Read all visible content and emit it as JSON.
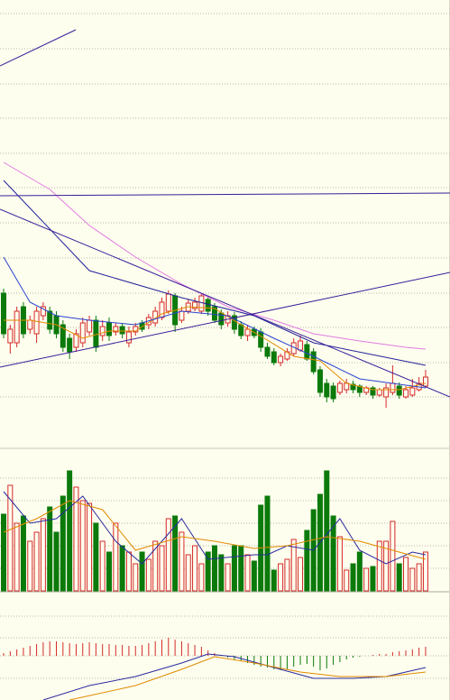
{
  "chart_data": [
    {
      "type": "candlestick",
      "xlim": [
        -0.55,
        67.7
      ],
      "ylim": [
        1,
        50
      ],
      "yticks": [
        48.5,
        44.6,
        40.7,
        36.9,
        33,
        29.2,
        25.3,
        21.4,
        17.5,
        13.7,
        9.8,
        6
      ],
      "grid": true,
      "up_color": "#d42a2a",
      "down_color": "#0b7a0b",
      "open": [
        17.5,
        12.0,
        12.0,
        16.0,
        13.5,
        13.0,
        15.0,
        15.5,
        15.0,
        14.0,
        12.5,
        11.5,
        12.0,
        13.2,
        14.5,
        12.8,
        14.2,
        13.2,
        13.8,
        12.0,
        13.2,
        14.2,
        14.0,
        14.2,
        14.8,
        15.5,
        17.2,
        14.5,
        15.5,
        15.8,
        15.5,
        16.8,
        16.0,
        15.3,
        14.2,
        15.0,
        14.0,
        12.8,
        13.5,
        13.2,
        11.5,
        11.0,
        9.8,
        10.2,
        10.8,
        11.2,
        11.8,
        11.0,
        9.0,
        7.5,
        7.2,
        6.5,
        6.8,
        7.4,
        7.2,
        6.5,
        7.0,
        6.2,
        6.0,
        6.5,
        7.2,
        6.0,
        6.2,
        6.8,
        7.2
      ],
      "high": [
        18.0,
        14.0,
        16.0,
        16.5,
        15.0,
        16.0,
        16.5,
        16.0,
        15.5,
        14.5,
        13.0,
        13.5,
        14.8,
        15.0,
        15.0,
        14.5,
        14.8,
        14.2,
        14.2,
        13.8,
        14.2,
        14.5,
        15.2,
        16.0,
        17.0,
        17.8,
        17.5,
        16.0,
        16.8,
        17.0,
        17.5,
        17.2,
        16.4,
        15.7,
        15.5,
        15.4,
        14.4,
        14.0,
        13.8,
        13.6,
        12.0,
        11.4,
        10.8,
        11.4,
        12.5,
        12.8,
        12.2,
        11.4,
        9.4,
        8.0,
        7.6,
        7.8,
        8.0,
        7.8,
        7.4,
        7.2,
        7.2,
        7.0,
        7.5,
        9.5,
        7.6,
        7.2,
        8.0,
        8.2,
        9.0
      ],
      "low": [
        12.5,
        10.8,
        11.5,
        12.5,
        13.0,
        12.0,
        14.5,
        13.0,
        12.5,
        11.0,
        10.2,
        11.0,
        11.5,
        12.8,
        11.0,
        12.2,
        12.2,
        12.8,
        12.5,
        11.5,
        12.8,
        13.2,
        13.5,
        13.8,
        14.5,
        15.2,
        13.2,
        14.2,
        15.2,
        15.5,
        15.2,
        15.0,
        14.2,
        13.5,
        13.8,
        13.0,
        12.4,
        12.2,
        12.5,
        11.0,
        10.2,
        9.5,
        9.4,
        10.0,
        10.5,
        11.0,
        10.0,
        8.5,
        6.0,
        5.4,
        5.4,
        6.2,
        6.4,
        6.4,
        6.0,
        6.2,
        5.8,
        6.0,
        4.8,
        6.2,
        5.8,
        5.8,
        6.0,
        6.6,
        7.0
      ],
      "close": [
        13.0,
        13.5,
        15.5,
        13.0,
        14.5,
        15.5,
        16.0,
        13.5,
        13.0,
        11.5,
        11.0,
        13.0,
        14.2,
        14.5,
        11.5,
        13.8,
        12.8,
        13.8,
        13.0,
        13.2,
        13.8,
        13.5,
        14.8,
        15.5,
        16.5,
        17.4,
        14.0,
        15.5,
        16.4,
        16.5,
        17.2,
        15.5,
        14.5,
        14.0,
        15.0,
        13.5,
        12.8,
        13.5,
        12.8,
        11.5,
        10.5,
        9.8,
        10.5,
        11.0,
        12.0,
        12.2,
        10.2,
        8.8,
        6.5,
        6.0,
        5.8,
        7.5,
        7.5,
        6.8,
        6.5,
        7.0,
        6.2,
        6.8,
        7.0,
        7.5,
        6.2,
        6.8,
        7.0,
        7.5,
        8.2
      ],
      "lines": [
        {
          "color": "#e08a00",
          "x": [
            0,
            4,
            8,
            12,
            16,
            20,
            24,
            28,
            32,
            36,
            40,
            44,
            48,
            52,
            56,
            60,
            64
          ],
          "values": [
            14.5,
            14.5,
            14.0,
            12.5,
            13.3,
            13.3,
            15.2,
            16.0,
            15.8,
            14.0,
            12.3,
            10.5,
            10.0,
            7.5,
            6.8,
            6.8,
            7.5
          ]
        },
        {
          "color": "#2a44d0",
          "x": [
            0,
            4,
            8,
            13,
            20,
            27,
            34,
            41,
            47,
            54,
            64
          ],
          "values": [
            21.5,
            16.5,
            15.0,
            14.5,
            14.0,
            15.5,
            15.0,
            12.5,
            10.5,
            8.0,
            7.0
          ]
        },
        {
          "color": "#22229a",
          "x": [
            0,
            13,
            27,
            38,
            47,
            64
          ],
          "values": [
            30.0,
            20.0,
            17.0,
            15.0,
            12.0,
            9.5
          ]
        },
        {
          "color": "#e27ae2",
          "x": [
            0,
            7,
            13,
            20,
            27,
            34,
            41,
            47,
            54,
            61,
            64
          ],
          "values": [
            32.0,
            29.0,
            25.0,
            21.5,
            18.5,
            16.0,
            14.5,
            13.0,
            12.2,
            11.5,
            11.3
          ]
        }
      ],
      "trendlines": [
        {
          "color": "#3a1e9a",
          "x": [
            -0.55,
            10.94
          ],
          "values": [
            42.7,
            46.7
          ]
        },
        {
          "color": "#3a1e9a",
          "x": [
            -0.55,
            67.7
          ],
          "values": [
            28.3,
            28.6
          ]
        },
        {
          "color": "#3a1e9a",
          "x": [
            -0.55,
            67.7
          ],
          "values": [
            26.8,
            6.0
          ]
        },
        {
          "color": "#3a1e9a",
          "x": [
            -0.55,
            67.7
          ],
          "values": [
            9.3,
            19.8
          ]
        }
      ]
    },
    {
      "type": "bar",
      "xlim": [
        -0.55,
        67.7
      ],
      "ylim": [
        0,
        150
      ],
      "yticks": [
        25,
        50,
        75,
        100,
        125
      ],
      "grid": true,
      "values": [
        85,
        117,
        75,
        83,
        55,
        65,
        80,
        93,
        65,
        105,
        133,
        115,
        100,
        97,
        75,
        55,
        43,
        75,
        50,
        43,
        30,
        43,
        35,
        55,
        50,
        80,
        83,
        65,
        40,
        50,
        30,
        43,
        50,
        40,
        30,
        50,
        50,
        40,
        33,
        95,
        105,
        23,
        30,
        35,
        57,
        37,
        67,
        90,
        107,
        133,
        83,
        60,
        23,
        30,
        43,
        25,
        27,
        55,
        55,
        77,
        30,
        37,
        25,
        30,
        43
      ],
      "lines": [
        {
          "color": "#2a2aa0",
          "x": [
            0,
            4,
            8,
            12,
            14,
            17,
            21,
            27,
            31,
            38,
            40,
            43,
            47,
            51,
            54,
            58,
            62,
            64
          ],
          "values": [
            110,
            75,
            80,
            105,
            85,
            55,
            30,
            80,
            35,
            40,
            40,
            50,
            45,
            80,
            45,
            30,
            43,
            40
          ]
        },
        {
          "color": "#e08a00",
          "x": [
            0,
            5,
            10,
            15,
            20,
            27,
            32,
            38,
            43,
            49,
            54,
            60,
            64
          ],
          "values": [
            65,
            80,
            100,
            90,
            45,
            60,
            55,
            47,
            50,
            60,
            55,
            43,
            35
          ]
        }
      ]
    },
    {
      "type": "macd",
      "xlim": [
        -0.55,
        67.7
      ],
      "ylim": [
        -4.9,
        6.7
      ],
      "yticks": [
        4.4,
        2,
        0,
        -2.5
      ],
      "grid": true,
      "values": [
        0.3,
        0.5,
        0.7,
        0.9,
        1.1,
        1.3,
        1.5,
        1.6,
        1.6,
        1.5,
        1.4,
        1.3,
        1.4,
        1.5,
        1.4,
        1.3,
        1.3,
        1.2,
        1.2,
        1.1,
        1.1,
        1.2,
        1.4,
        1.6,
        1.8,
        2.0,
        1.8,
        1.6,
        1.4,
        1.2,
        1.0,
        0.6,
        0.3,
        0.1,
        -0.2,
        -0.4,
        -0.6,
        -0.8,
        -1.0,
        -1.2,
        -1.3,
        -1.5,
        -1.6,
        -1.5,
        -1.2,
        -1.0,
        -0.9,
        -1.2,
        -1.6,
        -1.4,
        -1.0,
        -0.7,
        -0.4,
        -0.2,
        -0.1,
        0.0,
        0.1,
        0.2,
        0.2,
        0.4,
        0.5,
        0.6,
        0.7,
        0.9,
        1.0
      ],
      "up_color": "#d42a2a",
      "down_color": "#0b7a0b",
      "lines": [
        {
          "color": "#2a2aa0",
          "x": [
            6,
            13,
            20,
            27,
            31,
            35,
            41,
            47,
            53,
            58,
            64
          ],
          "values": [
            -4.9,
            -3.3,
            -2.3,
            -0.8,
            0.2,
            -0.1,
            -1.3,
            -2.5,
            -2.5,
            -2.3,
            -1.3
          ]
        },
        {
          "color": "#e08a00",
          "x": [
            10,
            20,
            27,
            32,
            38,
            45,
            51,
            58,
            64
          ],
          "values": [
            -4.9,
            -3.3,
            -1.5,
            -0.1,
            -0.8,
            -1.8,
            -2.3,
            -2.3,
            -1.8
          ]
        }
      ]
    }
  ]
}
